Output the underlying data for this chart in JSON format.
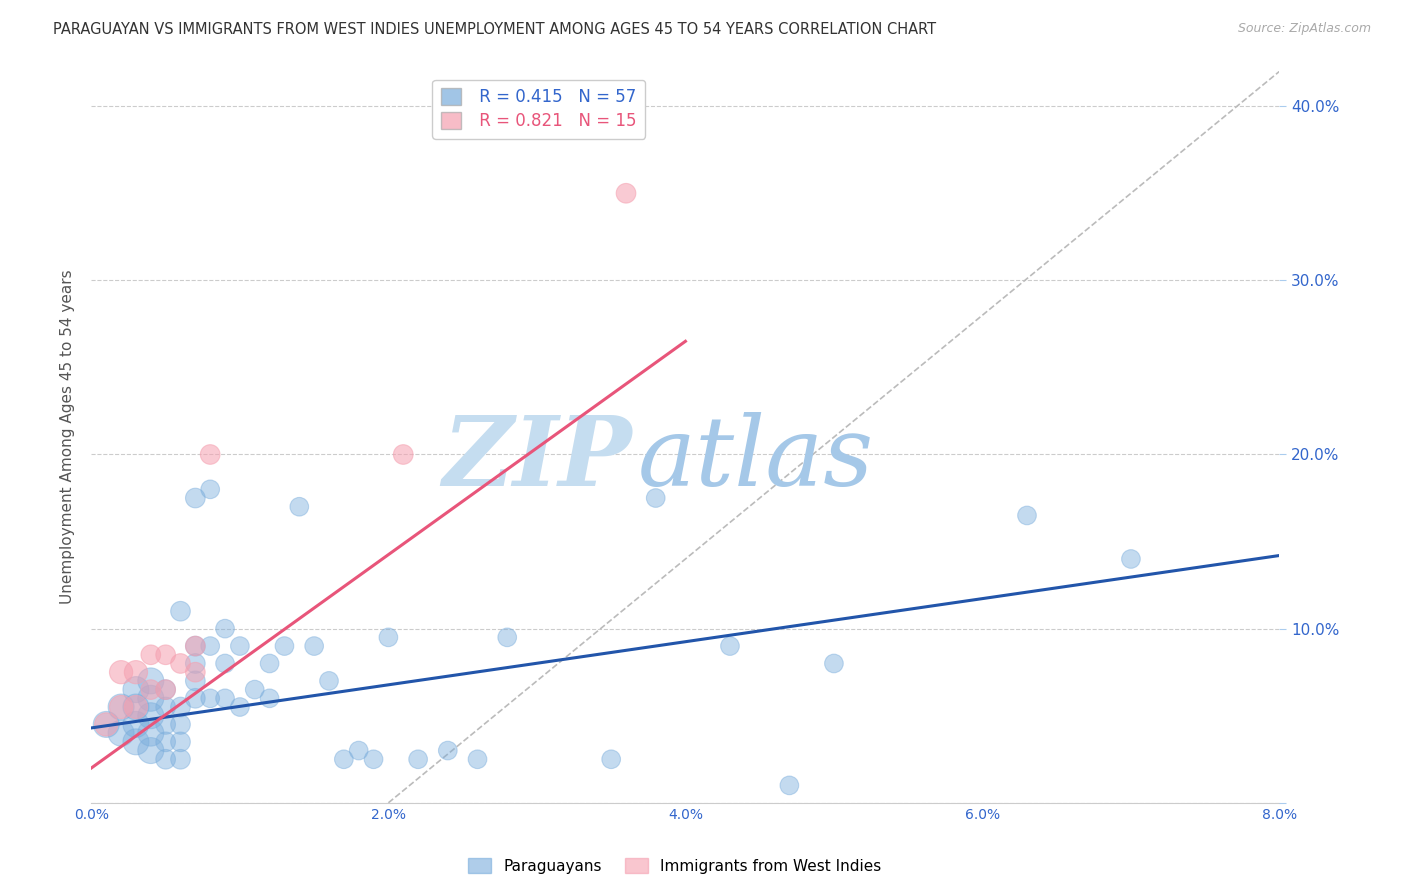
{
  "title": "PARAGUAYAN VS IMMIGRANTS FROM WEST INDIES UNEMPLOYMENT AMONG AGES 45 TO 54 YEARS CORRELATION CHART",
  "source": "Source: ZipAtlas.com",
  "ylabel": "Unemployment Among Ages 45 to 54 years",
  "xlim": [
    0.0,
    0.08
  ],
  "ylim": [
    0.0,
    0.42
  ],
  "xticks": [
    0.0,
    0.01,
    0.02,
    0.03,
    0.04,
    0.05,
    0.06,
    0.07,
    0.08
  ],
  "xticklabels": [
    "0.0%",
    "",
    "2.0%",
    "",
    "4.0%",
    "",
    "6.0%",
    "",
    "8.0%"
  ],
  "yticks": [
    0.0,
    0.1,
    0.2,
    0.3,
    0.4
  ],
  "yticklabels": [
    "",
    "10.0%",
    "20.0%",
    "30.0%",
    "40.0%"
  ],
  "grid_color": "#cccccc",
  "background_color": "#ffffff",
  "watermark_zip": "ZIP",
  "watermark_atlas": "atlas",
  "watermark_color_zip": "#c8dcee",
  "watermark_color_atlas": "#a8c8e8",
  "legend_r1": "R = 0.415",
  "legend_n1": "N = 57",
  "legend_r2": "R = 0.821",
  "legend_n2": "N = 15",
  "legend_label1": "Paraguayans",
  "legend_label2": "Immigrants from West Indies",
  "blue_color": "#7aaddc",
  "pink_color": "#f5a0b0",
  "blue_line_color": "#2255aa",
  "pink_line_color": "#e8557a",
  "ref_line_color": "#bbbbbb",
  "paraguayan_x": [
    0.001,
    0.002,
    0.002,
    0.003,
    0.003,
    0.003,
    0.003,
    0.004,
    0.004,
    0.004,
    0.004,
    0.004,
    0.005,
    0.005,
    0.005,
    0.005,
    0.005,
    0.006,
    0.006,
    0.006,
    0.006,
    0.006,
    0.007,
    0.007,
    0.007,
    0.007,
    0.007,
    0.008,
    0.008,
    0.008,
    0.009,
    0.009,
    0.009,
    0.01,
    0.01,
    0.011,
    0.012,
    0.012,
    0.013,
    0.014,
    0.015,
    0.016,
    0.017,
    0.018,
    0.019,
    0.02,
    0.022,
    0.024,
    0.026,
    0.028,
    0.035,
    0.038,
    0.043,
    0.047,
    0.05,
    0.063,
    0.07
  ],
  "paraguayan_y": [
    0.045,
    0.04,
    0.055,
    0.035,
    0.045,
    0.055,
    0.065,
    0.03,
    0.04,
    0.05,
    0.06,
    0.07,
    0.025,
    0.035,
    0.045,
    0.055,
    0.065,
    0.025,
    0.035,
    0.045,
    0.055,
    0.11,
    0.06,
    0.07,
    0.08,
    0.09,
    0.175,
    0.06,
    0.09,
    0.18,
    0.06,
    0.08,
    0.1,
    0.055,
    0.09,
    0.065,
    0.06,
    0.08,
    0.09,
    0.17,
    0.09,
    0.07,
    0.025,
    0.03,
    0.025,
    0.095,
    0.025,
    0.03,
    0.025,
    0.095,
    0.025,
    0.175,
    0.09,
    0.01,
    0.08,
    0.165,
    0.14
  ],
  "westindies_x": [
    0.001,
    0.002,
    0.002,
    0.003,
    0.003,
    0.004,
    0.004,
    0.005,
    0.005,
    0.006,
    0.007,
    0.007,
    0.008,
    0.021,
    0.036
  ],
  "westindies_y": [
    0.045,
    0.055,
    0.075,
    0.055,
    0.075,
    0.065,
    0.085,
    0.065,
    0.085,
    0.08,
    0.075,
    0.09,
    0.2,
    0.2,
    0.35
  ],
  "blue_line_x0": 0.0,
  "blue_line_y0": 0.043,
  "blue_line_x1": 0.08,
  "blue_line_y1": 0.142,
  "pink_line_x0": 0.0,
  "pink_line_y0": 0.02,
  "pink_line_x1": 0.04,
  "pink_line_y1": 0.265,
  "ref_line_x0": 0.02,
  "ref_line_y0": 0.0,
  "ref_line_x1": 0.08,
  "ref_line_y1": 0.42
}
